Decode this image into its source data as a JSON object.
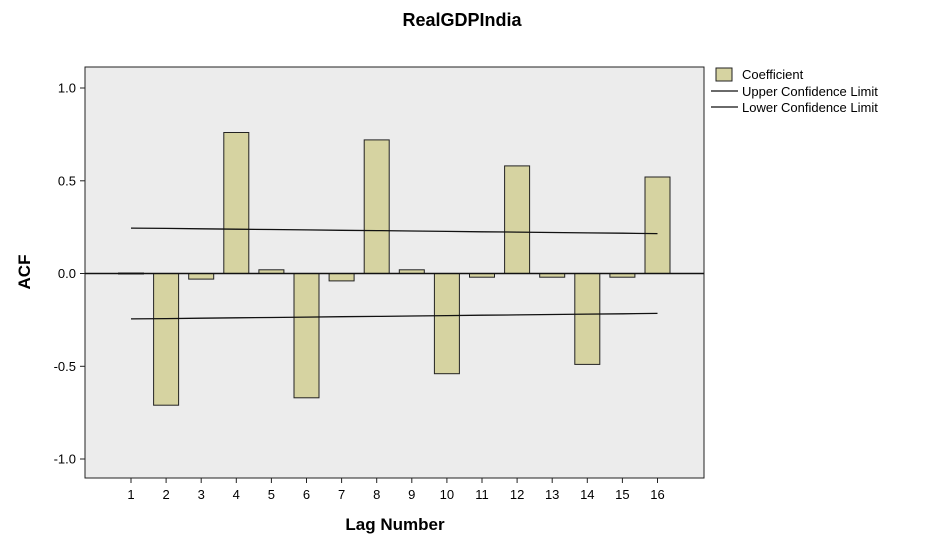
{
  "chart_data": {
    "type": "bar",
    "title": "RealGDPIndia",
    "xlabel": "Lag Number",
    "ylabel": "ACF",
    "categories": [
      "1",
      "2",
      "3",
      "4",
      "5",
      "6",
      "7",
      "8",
      "9",
      "10",
      "11",
      "12",
      "13",
      "14",
      "15",
      "16"
    ],
    "series": [
      {
        "name": "Coefficient",
        "type": "bar",
        "values": [
          0.0,
          -0.71,
          -0.03,
          0.76,
          0.02,
          -0.67,
          -0.04,
          0.72,
          0.02,
          -0.54,
          -0.02,
          0.58,
          -0.02,
          -0.49,
          -0.02,
          0.52
        ]
      },
      {
        "name": "Upper Confidence Limit",
        "type": "line",
        "values": [
          0.245,
          0.243,
          0.241,
          0.239,
          0.237,
          0.235,
          0.233,
          0.231,
          0.229,
          0.227,
          0.225,
          0.223,
          0.221,
          0.219,
          0.217,
          0.215
        ]
      },
      {
        "name": "Lower Confidence Limit",
        "type": "line",
        "values": [
          -0.245,
          -0.243,
          -0.241,
          -0.239,
          -0.237,
          -0.235,
          -0.233,
          -0.231,
          -0.229,
          -0.227,
          -0.225,
          -0.223,
          -0.221,
          -0.219,
          -0.217,
          -0.215
        ]
      }
    ],
    "yticks": [
      "1.0",
      "0.5",
      "0.0",
      "-0.5",
      "-1.0"
    ],
    "ylim": [
      -1.1,
      1.1
    ],
    "grid": false,
    "legend_position": "top-right",
    "colors": {
      "plot_background": "#ececec",
      "bar_fill": "#d6d3a1",
      "bar_stroke": "#222222",
      "line": "#111111"
    }
  }
}
